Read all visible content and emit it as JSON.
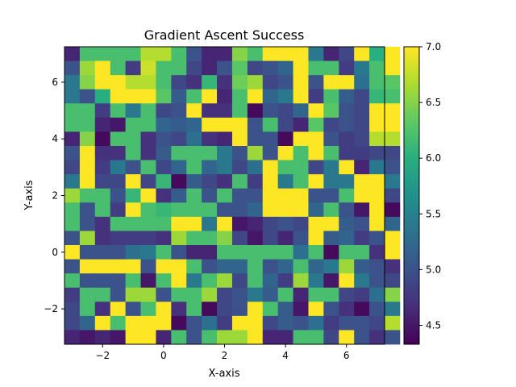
{
  "chart_data": {
    "type": "heatmap",
    "title": "Gradient Ascent Success",
    "xlabel": "X-axis",
    "ylabel": "Y-axis",
    "xlim": [
      -3.25,
      7.25
    ],
    "ylim": [
      -3.25,
      7.25
    ],
    "x_ticks": [
      -2,
      0,
      2,
      4,
      6
    ],
    "y_ticks": [
      -2,
      0,
      2,
      4,
      6
    ],
    "cell_size": 0.5,
    "grid": false,
    "colormap": "viridis",
    "colorbar": {
      "vmin": 4.33,
      "vmax": 7.0,
      "ticks": [
        4.5,
        5.0,
        5.5,
        6.0,
        6.5,
        7.0
      ],
      "tick_labels": [
        "4.5",
        "5.0",
        "5.5",
        "6.0",
        "6.5",
        "7.0"
      ]
    },
    "values_row_order": "top-to-bottom",
    "values": [
      [
        4.6,
        6.2,
        6.2,
        6.2,
        6.2,
        6.7,
        6.7,
        6.2,
        5.0,
        4.6,
        4.6,
        6.5,
        6.2,
        7.0,
        7.0,
        7.0,
        5.4,
        4.6,
        4.9,
        7.0,
        6.0,
        7.0
      ],
      [
        5.0,
        6.6,
        7.0,
        6.2,
        4.8,
        6.8,
        6.2,
        6.2,
        4.9,
        4.6,
        5.0,
        6.3,
        4.9,
        5.0,
        5.2,
        7.0,
        6.2,
        6.2,
        4.8,
        5.4,
        6.2,
        7.0
      ],
      [
        5.4,
        6.5,
        7.0,
        7.0,
        6.7,
        6.7,
        6.2,
        4.9,
        4.7,
        6.1,
        4.7,
        6.4,
        6.6,
        4.9,
        5.0,
        7.0,
        5.0,
        7.0,
        7.0,
        5.3,
        6.2,
        6.3
      ],
      [
        5.4,
        5.0,
        6.0,
        7.0,
        7.0,
        7.0,
        6.3,
        5.1,
        6.2,
        7.0,
        4.6,
        6.2,
        7.0,
        5.2,
        5.4,
        7.0,
        4.8,
        6.2,
        5.1,
        4.9,
        6.1,
        6.2
      ],
      [
        6.2,
        6.2,
        4.8,
        6.2,
        5.4,
        6.2,
        4.9,
        5.0,
        7.0,
        4.7,
        4.7,
        6.2,
        4.4,
        5.0,
        4.9,
        5.2,
        7.0,
        6.3,
        5.0,
        4.9,
        7.0,
        7.0
      ],
      [
        6.2,
        6.2,
        4.6,
        4.5,
        6.2,
        6.2,
        5.2,
        5.1,
        5.2,
        7.0,
        7.0,
        7.0,
        5.0,
        6.2,
        4.9,
        4.6,
        6.3,
        4.9,
        5.0,
        4.9,
        7.0,
        7.0
      ],
      [
        4.6,
        6.5,
        4.4,
        6.2,
        6.2,
        4.7,
        5.0,
        4.9,
        5.3,
        4.7,
        4.6,
        7.0,
        5.0,
        5.0,
        4.4,
        7.0,
        7.0,
        5.0,
        4.8,
        4.9,
        6.7,
        6.7
      ],
      [
        5.0,
        7.0,
        4.7,
        4.7,
        6.2,
        4.7,
        5.1,
        6.2,
        6.2,
        6.2,
        5.4,
        5.0,
        6.6,
        5.0,
        7.0,
        6.2,
        7.0,
        6.2,
        4.8,
        4.8,
        4.9,
        4.9
      ],
      [
        4.9,
        7.0,
        4.8,
        5.4,
        5.0,
        6.2,
        4.9,
        5.2,
        6.2,
        5.2,
        5.4,
        4.9,
        5.3,
        7.0,
        6.2,
        6.2,
        4.9,
        5.4,
        7.0,
        4.6,
        5.4,
        5.0
      ],
      [
        5.4,
        7.0,
        4.9,
        4.9,
        7.0,
        4.9,
        6.1,
        4.4,
        5.1,
        4.9,
        4.7,
        6.2,
        4.8,
        7.0,
        5.4,
        6.2,
        7.0,
        5.4,
        5.4,
        7.0,
        7.0,
        5.4
      ],
      [
        6.6,
        6.2,
        6.2,
        5.0,
        6.1,
        7.0,
        4.7,
        5.1,
        6.2,
        5.0,
        6.2,
        5.0,
        5.0,
        7.0,
        7.0,
        7.0,
        5.0,
        5.0,
        6.2,
        7.0,
        7.0,
        4.9
      ],
      [
        6.2,
        5.0,
        6.2,
        4.8,
        7.0,
        6.2,
        6.1,
        6.2,
        6.2,
        6.2,
        5.0,
        5.0,
        5.2,
        7.0,
        7.0,
        7.0,
        5.2,
        6.2,
        5.0,
        4.5,
        7.0,
        4.4
      ],
      [
        6.2,
        5.0,
        4.7,
        6.2,
        6.2,
        6.2,
        6.2,
        7.0,
        7.0,
        5.4,
        7.0,
        4.5,
        4.6,
        4.9,
        5.0,
        4.9,
        7.0,
        7.0,
        5.1,
        5.0,
        7.0,
        5.2
      ],
      [
        5.0,
        6.6,
        4.7,
        4.8,
        4.8,
        4.8,
        4.7,
        6.6,
        6.2,
        6.2,
        6.5,
        4.9,
        4.5,
        4.9,
        4.6,
        5.0,
        7.0,
        5.1,
        5.2,
        4.8,
        5.0,
        7.0
      ],
      [
        7.0,
        5.0,
        5.0,
        5.0,
        5.3,
        5.4,
        6.2,
        5.0,
        4.6,
        4.6,
        6.2,
        6.2,
        6.2,
        6.2,
        6.2,
        5.3,
        6.2,
        4.4,
        6.2,
        6.2,
        4.7,
        7.0
      ],
      [
        5.0,
        7.0,
        7.0,
        7.0,
        7.0,
        5.0,
        7.0,
        7.0,
        6.2,
        5.0,
        5.2,
        5.2,
        6.2,
        5.0,
        5.2,
        6.2,
        5.2,
        5.4,
        6.6,
        5.1,
        5.0,
        4.7
      ],
      [
        6.2,
        5.0,
        5.0,
        5.0,
        6.2,
        4.5,
        6.2,
        7.0,
        5.4,
        6.2,
        6.6,
        4.9,
        6.2,
        5.2,
        4.8,
        6.6,
        5.4,
        4.5,
        7.0,
        5.4,
        5.0,
        4.9
      ],
      [
        4.8,
        6.2,
        6.2,
        5.0,
        6.6,
        6.6,
        5.0,
        6.2,
        6.2,
        6.6,
        4.9,
        5.0,
        5.4,
        5.1,
        6.2,
        4.6,
        6.2,
        6.2,
        4.9,
        4.8,
        5.3,
        6.5
      ],
      [
        4.9,
        6.2,
        4.7,
        7.0,
        5.0,
        6.2,
        7.0,
        4.7,
        6.2,
        4.4,
        4.9,
        5.0,
        7.0,
        6.2,
        5.1,
        4.5,
        7.0,
        5.0,
        4.7,
        4.4,
        5.0,
        5.4
      ],
      [
        4.9,
        5.2,
        7.0,
        6.2,
        7.0,
        7.0,
        7.0,
        4.4,
        5.0,
        5.3,
        4.8,
        7.0,
        7.0,
        4.9,
        5.1,
        5.0,
        5.3,
        4.8,
        5.0,
        5.0,
        4.9,
        6.7
      ],
      [
        4.6,
        4.5,
        4.6,
        4.5,
        7.0,
        7.0,
        4.6,
        6.2,
        5.0,
        6.2,
        6.6,
        6.6,
        7.0,
        4.6,
        4.6,
        6.2,
        6.2,
        4.9,
        7.0,
        5.0,
        4.7,
        5.0
      ]
    ]
  }
}
